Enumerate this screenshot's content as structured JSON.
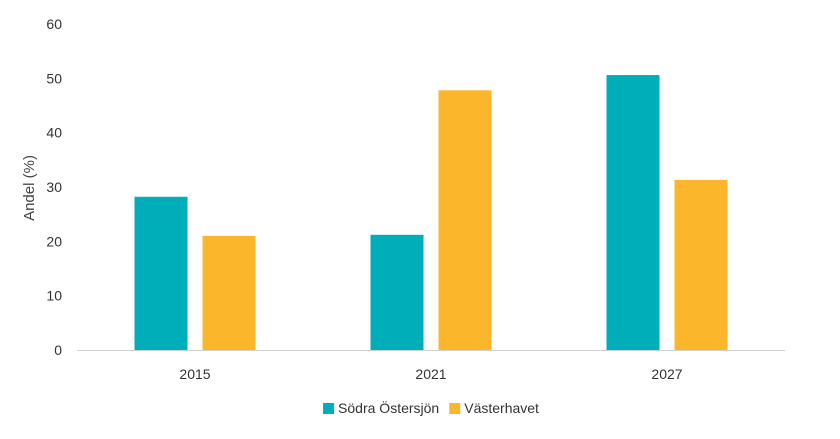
{
  "chart_data": {
    "type": "bar",
    "title": "",
    "xlabel": "",
    "ylabel": "Andel (%)",
    "ylim": [
      0,
      60
    ],
    "yticks": [
      0,
      10,
      20,
      30,
      40,
      50,
      60
    ],
    "grid": false,
    "legend_position": "bottom",
    "categories": [
      "2015",
      "2021",
      "2027"
    ],
    "series": [
      {
        "name": "Södra Östersjön",
        "color": "#00aeba",
        "values": [
          28.2,
          21.2,
          50.6
        ]
      },
      {
        "name": "Västerhavet",
        "color": "#fbb62c",
        "values": [
          21.0,
          47.8,
          31.3
        ]
      }
    ]
  }
}
